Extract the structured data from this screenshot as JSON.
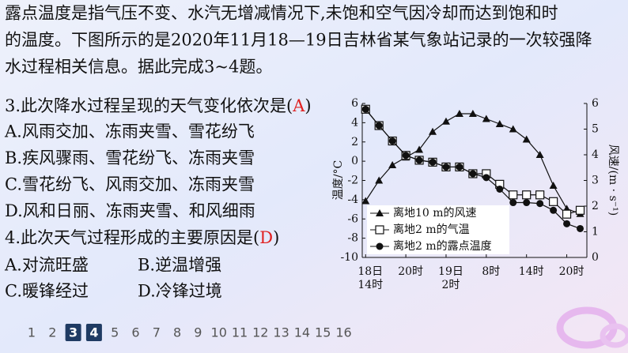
{
  "paragraph": {
    "lines": [
      "露点温度是指气压不变、水汽无增减情况下,未饱和空气因冷却而达到饱和时",
      "的温度。下图所示的是2020年11月18—19日吉林省某气象站记录的一次较强降",
      "水过程相关信息。据此完成3~4题。"
    ]
  },
  "questions": [
    {
      "stem": "3.此次降水过程呈现的天气变化依次是(",
      "answer": "A",
      "close": ")",
      "options": [
        "A.风雨交加、冻雨夹雪、雪花纷飞",
        "B.疾风骤雨、雪花纷飞、冻雨夹雪",
        "C.雪花纷飞、风雨交加、冻雨夹雪",
        "D.风和日丽、冻雨夹雪、和风细雨"
      ]
    },
    {
      "stem": "4.此次天气过程形成的主要原因是(",
      "answer": "D",
      "close": ")",
      "options": [
        "A.对流旺盛",
        "B.逆温增强",
        "C.暖锋经过",
        "D.冷锋过境"
      ]
    }
  ],
  "pagination": {
    "pages": [
      1,
      2,
      3,
      4,
      5,
      6,
      7,
      8,
      9,
      10,
      11,
      12,
      13,
      14,
      15,
      16
    ],
    "current": [
      3,
      4
    ]
  },
  "chart_data": {
    "type": "line",
    "y_label": "温度/°C",
    "y2_label": "风速/(m · s⁻¹)",
    "x": [
      0,
      2,
      4,
      6,
      8,
      10,
      12,
      14,
      16,
      18,
      20,
      22,
      24,
      26,
      28,
      30,
      32
    ],
    "xlim": [
      -0.5,
      33
    ],
    "xticks": [
      {
        "value": 0,
        "label": "18日\n14时"
      },
      {
        "value": 6,
        "label": "20时"
      },
      {
        "value": 12,
        "label": "19日\n2时"
      },
      {
        "value": 18,
        "label": "8时"
      },
      {
        "value": 24,
        "label": "14时"
      },
      {
        "value": 30,
        "label": "20时"
      }
    ],
    "ylim": [
      -10,
      6
    ],
    "yticks": [
      -10,
      -8,
      -6,
      -4,
      -2,
      0,
      2,
      4,
      6
    ],
    "y2lim": [
      0,
      6
    ],
    "y2ticks": [
      0,
      1,
      2,
      3,
      4,
      5,
      6
    ],
    "series": [
      {
        "name": "离地10 m的风速",
        "color": "#111111",
        "marker": "triangle",
        "axis": "y2",
        "values": [
          2.2,
          3.0,
          3.6,
          3.9,
          4.2,
          4.9,
          5.3,
          5.6,
          5.6,
          5.4,
          5.2,
          5.0,
          4.6,
          4.0,
          2.8,
          1.9,
          1.7
        ]
      },
      {
        "name": "离地2 m的气温",
        "color": "#111111",
        "marker": "square",
        "values": [
          5.4,
          3.7,
          2.1,
          0.6,
          0.1,
          -0.1,
          -0.6,
          -0.6,
          -1.3,
          -1.3,
          -2.4,
          -3.5,
          -3.5,
          -3.5,
          -4.2,
          -5.5,
          -5.1
        ]
      },
      {
        "name": "离地2 m的露点温度",
        "color": "#111111",
        "marker": "circle",
        "values": [
          5.4,
          3.7,
          2.1,
          0.6,
          0.1,
          -0.1,
          -0.6,
          -0.6,
          -1.3,
          -1.7,
          -2.9,
          -4.3,
          -4.3,
          -4.4,
          -5.1,
          -6.5,
          -7.0
        ]
      }
    ]
  }
}
